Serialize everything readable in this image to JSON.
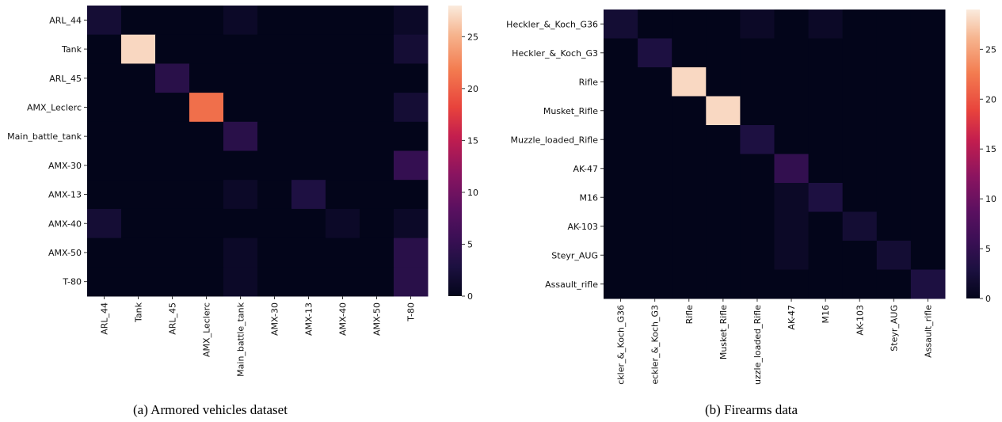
{
  "captions": {
    "left": "(a) Armored vehicles dataset",
    "right": "(b) Firearms data"
  },
  "chart_data": [
    {
      "type": "heatmap",
      "title": "",
      "xlabel": "",
      "ylabel": "",
      "categories_y": [
        "ARL_44",
        "Tank",
        "ARL_45",
        "AMX_Leclerc",
        "Main_battle_tank",
        "AMX-30",
        "AMX-13",
        "AMX-40",
        "AMX-50",
        "T-80"
      ],
      "categories_x": [
        "ARL_44",
        "Tank",
        "ARL_45",
        "AMX_Leclerc",
        "Main_battle_tank",
        "AMX-30",
        "AMX-13",
        "AMX-40",
        "AMX-50",
        "T-80"
      ],
      "values": [
        [
          2,
          0,
          0,
          0,
          1,
          0,
          0,
          0,
          0,
          1
        ],
        [
          0,
          27,
          0,
          0,
          0,
          0,
          0,
          0,
          0,
          2
        ],
        [
          0,
          0,
          4,
          0,
          0,
          0,
          0,
          0,
          0,
          0
        ],
        [
          0,
          0,
          0,
          21,
          0,
          0,
          0,
          0,
          0,
          2
        ],
        [
          0,
          0,
          0,
          0,
          4,
          0,
          0,
          0,
          0,
          0
        ],
        [
          0,
          0,
          0,
          0,
          0,
          0,
          0,
          0,
          0,
          5
        ],
        [
          0,
          0,
          0,
          0,
          1,
          0,
          3,
          0,
          0,
          0
        ],
        [
          2,
          0,
          0,
          0,
          0,
          0,
          0,
          1,
          0,
          1
        ],
        [
          0,
          0,
          0,
          0,
          1,
          0,
          0,
          0,
          0,
          4
        ],
        [
          0,
          0,
          0,
          0,
          1,
          0,
          0,
          0,
          0,
          4
        ]
      ],
      "colorbar": {
        "min": 0,
        "max": 28,
        "ticks": [
          0,
          5,
          10,
          15,
          20,
          25
        ]
      },
      "colormap": "rocket"
    },
    {
      "type": "heatmap",
      "title": "",
      "xlabel": "",
      "ylabel": "",
      "categories_y": [
        "Heckler_&_Koch_G36",
        "Heckler_&_Koch_G3",
        "Rifle",
        "Musket_Rifle",
        "Muzzle_loaded_Rifle",
        "AK-47",
        "M16",
        "AK-103",
        "Steyr_AUG",
        "Assault_rifle"
      ],
      "categories_x": [
        "ckler_&_Koch_G36",
        "eckler_&_Koch_G3",
        "Rifle",
        "Musket_Rifle",
        "uzzle_loaded_Rifle",
        "AK-47",
        "M16",
        "AK-103",
        "Steyr_AUG",
        "Assault_rifle"
      ],
      "values": [
        [
          2,
          0,
          0,
          0,
          1,
          0,
          1,
          0,
          0,
          0
        ],
        [
          0,
          3,
          0,
          0,
          0,
          0,
          0,
          0,
          0,
          0
        ],
        [
          0,
          0,
          28,
          0,
          0,
          0,
          0,
          0,
          0,
          0
        ],
        [
          0,
          0,
          0,
          28,
          0,
          0,
          0,
          0,
          0,
          0
        ],
        [
          0,
          0,
          0,
          0,
          3,
          0,
          0,
          0,
          0,
          0
        ],
        [
          0,
          0,
          0,
          0,
          0,
          5,
          0,
          0,
          0,
          0
        ],
        [
          0,
          0,
          0,
          0,
          0,
          1,
          3,
          0,
          0,
          0
        ],
        [
          0,
          0,
          0,
          0,
          0,
          1,
          0,
          2,
          0,
          0
        ],
        [
          0,
          0,
          0,
          0,
          0,
          1,
          0,
          0,
          2,
          0
        ],
        [
          0,
          0,
          0,
          0,
          0,
          0,
          0,
          0,
          0,
          3
        ]
      ],
      "colorbar": {
        "min": 0,
        "max": 29,
        "ticks": [
          0,
          5,
          10,
          15,
          20,
          25
        ]
      },
      "colormap": "rocket"
    }
  ]
}
